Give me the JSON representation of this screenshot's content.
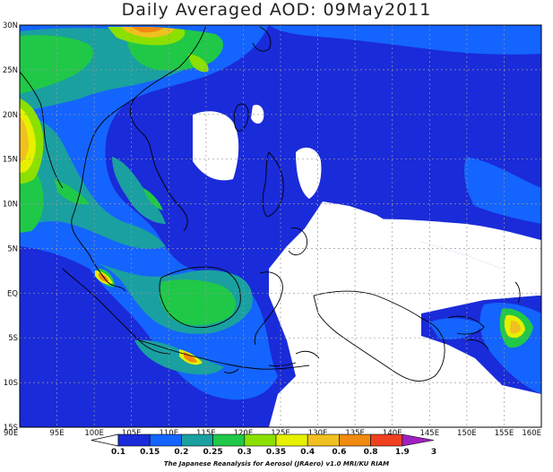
{
  "title": "Daily Averaged AOD: 09May2011",
  "credit": "The Japanese Reanalysis for Aerosol (JRAero) v1.0 MRI/KU RIAM",
  "map": {
    "lon_range": [
      90,
      160
    ],
    "lat_range": [
      -15,
      30
    ],
    "x_ticks": [
      "90E",
      "95E",
      "100E",
      "105E",
      "110E",
      "115E",
      "120E",
      "125E",
      "130E",
      "135E",
      "140E",
      "145E",
      "150E",
      "155E",
      "160E"
    ],
    "y_ticks": [
      "30N",
      "25N",
      "20N",
      "15N",
      "10N",
      "5N",
      "EQ",
      "5S",
      "10S",
      "15S"
    ],
    "gridlines": true
  },
  "colorbar": {
    "levels": [
      "0.1",
      "0.15",
      "0.2",
      "0.25",
      "0.3",
      "0.35",
      "0.4",
      "0.6",
      "0.8",
      "1.9",
      "3"
    ],
    "colors": [
      "#1a2bd9",
      "#1464ff",
      "#1aa0a0",
      "#20c848",
      "#8ce000",
      "#e6f000",
      "#f0c020",
      "#f08a10",
      "#f04020",
      "#a020c0"
    ]
  }
}
